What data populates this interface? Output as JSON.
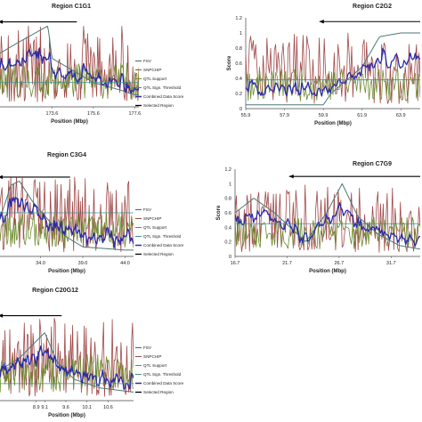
{
  "series_styles": [
    {
      "key": "fsv",
      "color": "#4a7a76",
      "width": 1.0
    },
    {
      "key": "snpchip",
      "color": "#a04848",
      "width": 0.8
    },
    {
      "key": "qtl",
      "color": "#6d8a2e",
      "width": 0.8
    },
    {
      "key": "threshold",
      "color": "#3f8f8f",
      "width": 0.8
    },
    {
      "key": "combined",
      "color": "#2a2aa8",
      "width": 1.3
    },
    {
      "key": "selected",
      "color": "#000000",
      "width": 1.1
    }
  ],
  "chart_data": [
    {
      "type": "line",
      "title": "Region C1G1",
      "xlabel": "Position (Mbp)",
      "ylabel": "",
      "ylim": [
        0,
        1.1
      ],
      "xlim": [
        171.0,
        177.8
      ],
      "xticks": [
        "173.6",
        "175.6",
        "177.6"
      ],
      "xtick_values": [
        173.6,
        175.6,
        177.6
      ],
      "yticks": [],
      "legend": [
        "FSV",
        "SNPCHIP",
        "QTL Support",
        "QTL Sign. Threshold",
        "Combined Data Score",
        "Selected Region"
      ],
      "legend_position": "right",
      "threshold": 0.3,
      "selected_region": [
        171.0,
        174.8
      ],
      "selected_y": 1.05,
      "fsv": {
        "x": [
          171.0,
          172.0,
          173.4,
          173.6,
          174.6,
          175.6,
          177.0,
          177.6
        ],
        "y": [
          0.65,
          0.8,
          1.0,
          0.6,
          0.45,
          0.3,
          0.2,
          0.15
        ]
      },
      "seed": 11
    },
    {
      "type": "line",
      "title": "Region C2G2",
      "xlabel": "Position (Mbp)",
      "ylabel": "Score",
      "ylim": [
        0,
        1.2
      ],
      "xlim": [
        55.9,
        64.9
      ],
      "xticks": [
        "55.9",
        "57.9",
        "59.9",
        "61.9",
        "63.9"
      ],
      "xtick_values": [
        55.9,
        57.9,
        59.9,
        61.9,
        63.9
      ],
      "yticks": [
        "0",
        "0.2",
        "0.4",
        "0.6",
        "0.8",
        "1",
        "1.2"
      ],
      "legend": [],
      "legend_position": "",
      "threshold": 0.38,
      "selected_region": [
        59.7,
        64.9
      ],
      "selected_y": 1.15,
      "fsv": {
        "x": [
          55.9,
          57.9,
          59.9,
          60.3,
          61.9,
          62.8,
          63.9,
          64.9
        ],
        "y": [
          0.05,
          0.05,
          0.05,
          0.2,
          0.55,
          0.95,
          1.0,
          1.0
        ]
      },
      "seed": 23
    },
    {
      "type": "line",
      "title": "Region C3G4",
      "xlabel": "Position (Mbp)",
      "ylabel": "",
      "ylim": [
        0,
        1.1
      ],
      "xlim": [
        29.0,
        45.0
      ],
      "xticks": [
        "34.0",
        "39.0",
        "44.0"
      ],
      "xtick_values": [
        34.0,
        39.0,
        44.0
      ],
      "yticks": [],
      "legend": [
        "FSV",
        "SNPCHIP",
        "QTL Support",
        "QTL Sign. Threshold",
        "Combined Data Score",
        "Selected Region"
      ],
      "legend_position": "right",
      "threshold": 0.55,
      "selected_region": [
        29.0,
        37.5
      ],
      "selected_y": 1.0,
      "fsv": {
        "x": [
          29.0,
          30.5,
          31.5,
          33.0,
          35.0,
          37.0,
          39.0,
          41.5,
          44.0,
          45.0
        ],
        "y": [
          0.4,
          0.9,
          0.95,
          0.7,
          0.45,
          0.25,
          0.12,
          0.1,
          0.08,
          0.08
        ]
      },
      "seed": 37
    },
    {
      "type": "line",
      "title": "Region C7G9",
      "xlabel": "Position (Mbp)",
      "ylabel": "Score",
      "ylim": [
        0,
        1.2
      ],
      "xlim": [
        16.7,
        34.5
      ],
      "xticks": [
        "16.7",
        "21.7",
        "26.7",
        "31.7"
      ],
      "xtick_values": [
        16.7,
        21.7,
        26.7,
        31.7
      ],
      "yticks": [
        "0",
        "0.2",
        "0.4",
        "0.6",
        "0.8",
        "1",
        "1.2"
      ],
      "legend": [],
      "legend_position": "",
      "threshold": 0.45,
      "selected_region": [
        21.9,
        34.5
      ],
      "selected_y": 1.1,
      "fsv": {
        "x": [
          16.7,
          18.5,
          20.5,
          22.0,
          23.5,
          25.5,
          27.0,
          28.5,
          30.5,
          32.5,
          34.5
        ],
        "y": [
          0.6,
          0.8,
          0.6,
          0.4,
          0.2,
          0.6,
          1.0,
          0.55,
          0.3,
          0.15,
          0.1
        ]
      },
      "seed": 53
    },
    {
      "type": "line",
      "title": "Region C20G12",
      "xlabel": "Position (Mbp)",
      "ylabel": "",
      "ylim": [
        0,
        1.1
      ],
      "xlim": [
        8.0,
        11.2
      ],
      "xticks": [
        "8.9",
        "9.1",
        "9.6",
        "10.1",
        "10.6"
      ],
      "xtick_values": [
        8.9,
        9.1,
        9.6,
        10.1,
        10.6
      ],
      "yticks": [],
      "legend": [
        "FSV",
        "SNPCHIP",
        "QTL Support",
        "QTL Sign. Threshold",
        "Combined Data Score",
        "Selected Region"
      ],
      "legend_position": "right",
      "threshold": 0.2,
      "selected_region": [
        8.0,
        9.5
      ],
      "selected_y": 1.0,
      "fsv": {
        "x": [
          8.0,
          8.5,
          9.0,
          9.1,
          9.4,
          9.8,
          10.4,
          11.2
        ],
        "y": [
          0.35,
          0.5,
          0.75,
          0.8,
          0.45,
          0.25,
          0.15,
          0.1
        ]
      },
      "seed": 71
    }
  ]
}
